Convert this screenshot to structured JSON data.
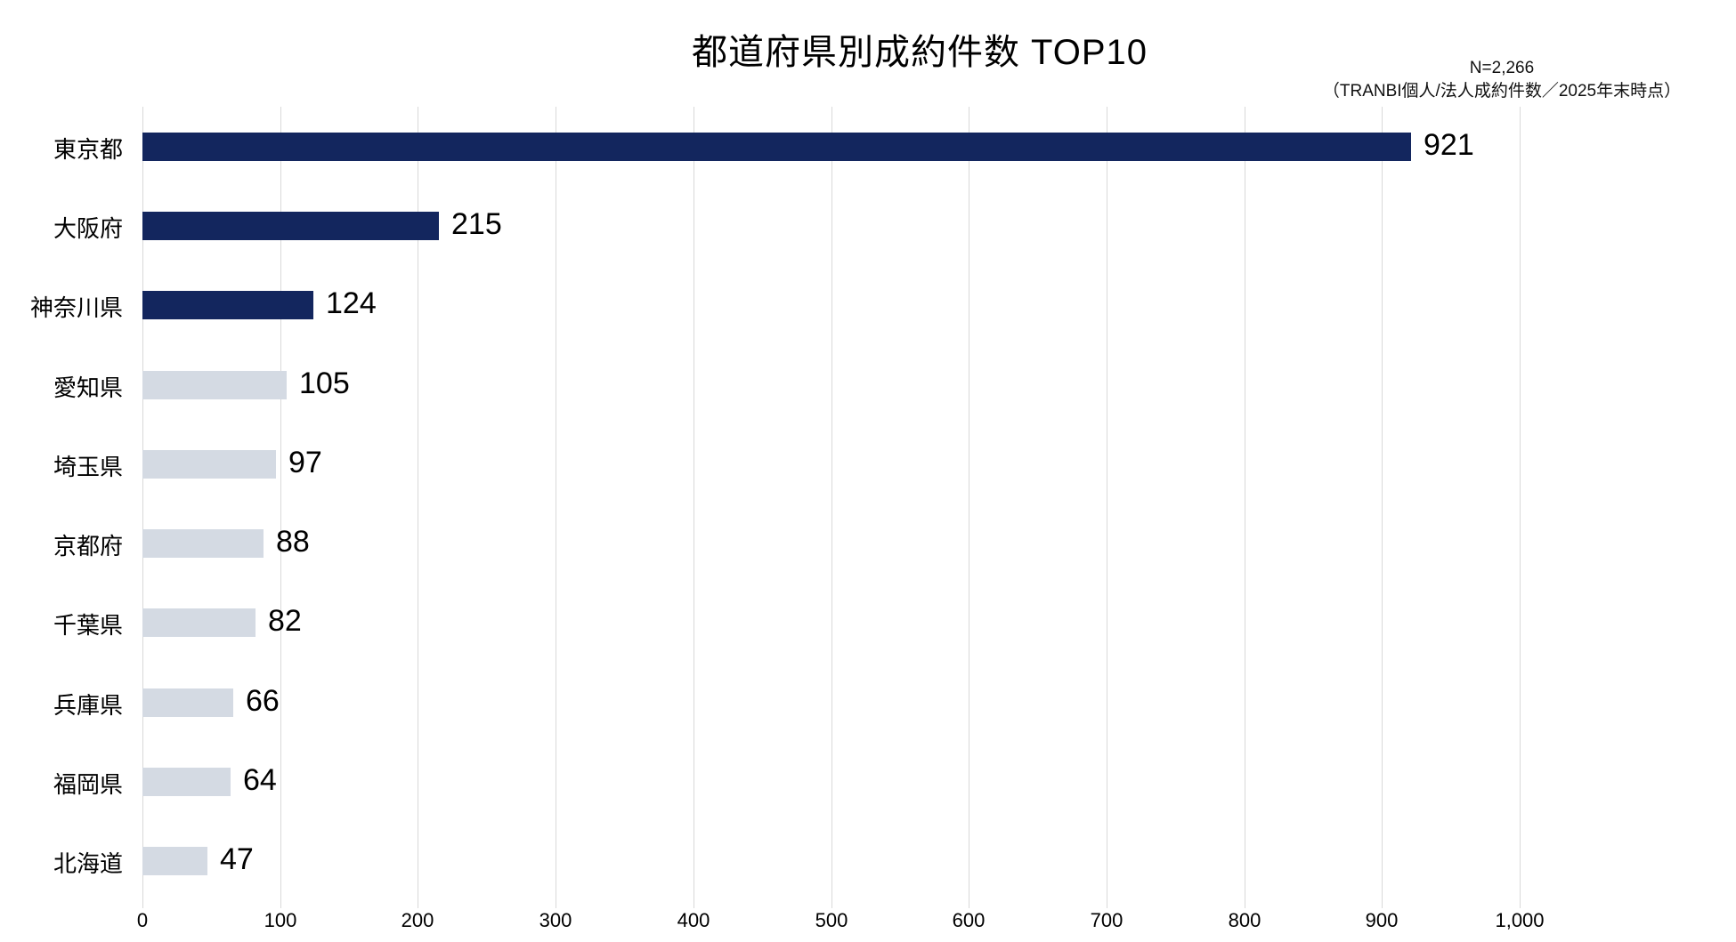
{
  "chart_data": {
    "type": "bar",
    "orientation": "horizontal",
    "title": "都道府県別成約件数 TOP10",
    "annotation_lines": [
      "N=2,266",
      "（TRANBI個人/法人成約件数／2025年末時点）"
    ],
    "categories": [
      "東京都",
      "大阪府",
      "神奈川県",
      "愛知県",
      "埼玉県",
      "京都府",
      "千葉県",
      "兵庫県",
      "福岡県",
      "北海道"
    ],
    "values": [
      921,
      215,
      124,
      105,
      97,
      88,
      82,
      66,
      64,
      47
    ],
    "value_labels": [
      "921",
      "215",
      "124",
      "105",
      "97",
      "88",
      "82",
      "66",
      "64",
      "47"
    ],
    "xlim": [
      0,
      1000
    ],
    "x_tick_values": [
      0,
      100,
      200,
      300,
      400,
      500,
      600,
      700,
      800,
      900,
      1000
    ],
    "x_tick_labels": [
      "0",
      "100",
      "200",
      "300",
      "400",
      "500",
      "600",
      "700",
      "800",
      "900",
      "1,000"
    ],
    "grid": true,
    "legend": "none",
    "highlight_count": 3,
    "colors": {
      "highlight_bar": "#13265e",
      "normal_bar": "#d4dae3",
      "gridline": "#d9d9d9",
      "text": "#000000",
      "background": "#ffffff"
    }
  }
}
